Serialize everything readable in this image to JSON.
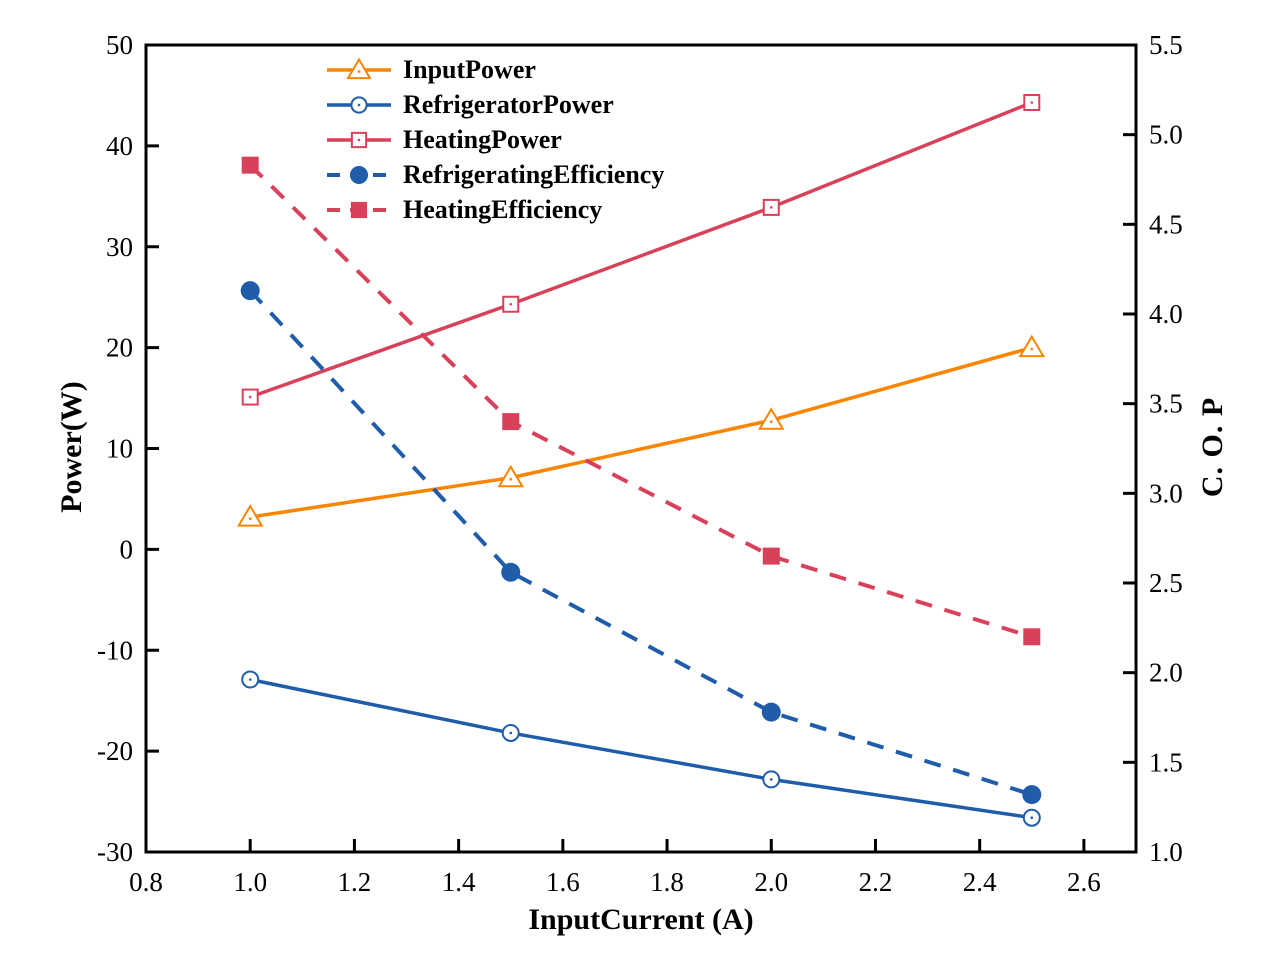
{
  "figure": {
    "background": "#ffffff",
    "frame_color": "#000000",
    "text_color": "#000000"
  },
  "chart_data": {
    "type": "line",
    "title": "",
    "xlabel": "InputCurrent (A)",
    "ylabel_left": "Power(W)",
    "ylabel_right": "C. O. P",
    "grid": false,
    "legend_position": "top-inside-left-of-center",
    "x": [
      1.0,
      1.5,
      2.0,
      2.5
    ],
    "xlim": [
      0.8,
      2.7
    ],
    "ylim_left": [
      -30,
      50
    ],
    "ylim_right": [
      1.0,
      5.5
    ],
    "x_ticks": [
      0.8,
      1.0,
      1.2,
      1.4,
      1.6,
      1.8,
      2.0,
      2.2,
      2.4,
      2.6
    ],
    "x_tick_labels": [
      "0.8",
      "1.0",
      "1.2",
      "1.4",
      "1.6",
      "1.8",
      "2.0",
      "2.2",
      "2.4",
      "2.6"
    ],
    "y_ticks_left": [
      -30,
      -20,
      -10,
      0,
      10,
      20,
      30,
      40,
      50
    ],
    "y_tick_labels_left": [
      "-30",
      "-20",
      "-10",
      "0",
      "10",
      "20",
      "30",
      "40",
      "50"
    ],
    "y_ticks_right": [
      1.0,
      1.5,
      2.0,
      2.5,
      3.0,
      3.5,
      4.0,
      4.5,
      5.0,
      5.5
    ],
    "y_tick_labels_right": [
      "1.0",
      "1.5",
      "2.0",
      "2.5",
      "3.0",
      "3.5",
      "4.0",
      "4.5",
      "5.0",
      "5.5"
    ],
    "series": [
      {
        "name": "InputPower",
        "axis": "left",
        "color": "#F98500",
        "line": "solid",
        "marker": "triangle-open",
        "values": [
          3.2,
          7.1,
          12.8,
          20.0
        ]
      },
      {
        "name": "RefrigeratorPower",
        "axis": "left",
        "color": "#1F5CA9",
        "line": "solid",
        "marker": "circle-open",
        "values": [
          -12.9,
          -18.2,
          -22.8,
          -26.6
        ]
      },
      {
        "name": "HeatingPower",
        "axis": "left",
        "color": "#D9415B",
        "line": "solid",
        "marker": "square-open",
        "values": [
          15.1,
          24.3,
          33.9,
          44.3
        ]
      },
      {
        "name": "RefrigeratingEfficiency",
        "axis": "right",
        "color": "#1F5CA9",
        "line": "dashed",
        "marker": "circle-filled",
        "values": [
          4.13,
          2.56,
          1.78,
          1.32
        ]
      },
      {
        "name": "HeatingEfficiency",
        "axis": "right",
        "color": "#D9415B",
        "line": "dashed",
        "marker": "square-filled",
        "values": [
          4.83,
          3.4,
          2.65,
          2.2
        ]
      }
    ]
  }
}
